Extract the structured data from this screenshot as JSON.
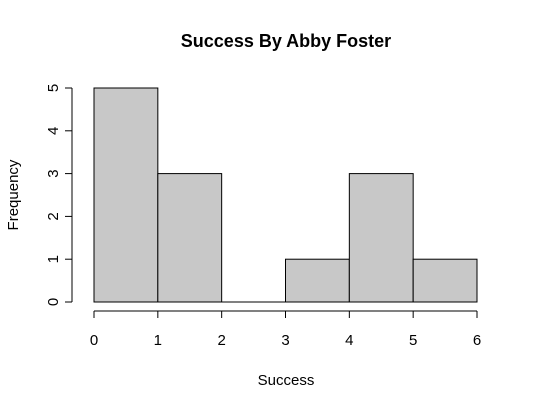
{
  "chart_data": {
    "type": "bar",
    "title": "Success By Abby Foster",
    "xlabel": "Success",
    "ylabel": "Frequency",
    "bins": [
      {
        "x0": 0,
        "x1": 1,
        "count": 5
      },
      {
        "x0": 1,
        "x1": 2,
        "count": 3
      },
      {
        "x0": 2,
        "x1": 3,
        "count": 0
      },
      {
        "x0": 3,
        "x1": 4,
        "count": 1
      },
      {
        "x0": 4,
        "x1": 5,
        "count": 3
      },
      {
        "x0": 5,
        "x1": 6,
        "count": 1
      }
    ],
    "xlim": [
      0,
      6
    ],
    "ylim": [
      0,
      5
    ],
    "xticks": [
      0,
      1,
      2,
      3,
      4,
      5,
      6
    ],
    "yticks": [
      0,
      1,
      2,
      3,
      4,
      5
    ],
    "grid": false,
    "bar_fill": "#c8c8c8",
    "bar_stroke": "#000000"
  }
}
